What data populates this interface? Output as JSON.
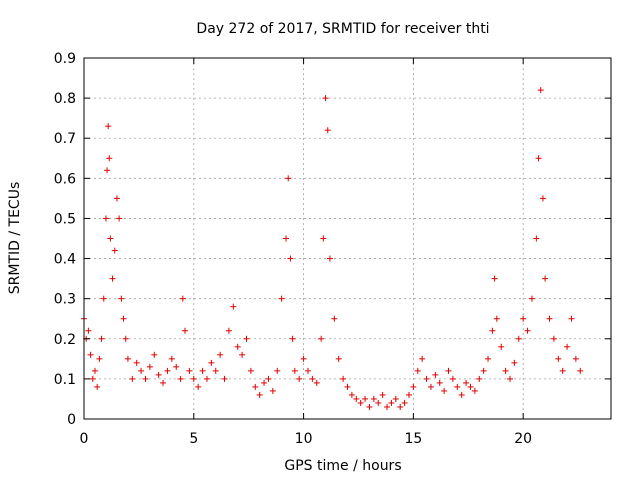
{
  "chart_data": {
    "type": "scatter",
    "title": "Day 272 of 2017, SRMTID for receiver thti",
    "xlabel": "GPS time / hours",
    "ylabel": "SRMTID / TECUs",
    "xlim": [
      0,
      24
    ],
    "ylim": [
      0,
      0.9
    ],
    "xticks": [
      0,
      5,
      10,
      15,
      20
    ],
    "xtick_labels": [
      "0",
      "5",
      "10",
      "15",
      "20"
    ],
    "yticks": [
      0,
      0.1,
      0.2,
      0.3,
      0.4,
      0.5,
      0.6,
      0.7,
      0.8,
      0.9
    ],
    "ytick_labels": [
      "0",
      "0.1",
      "0.2",
      "0.3",
      "0.4",
      "0.5",
      "0.6",
      "0.7",
      "0.8",
      "0.9"
    ],
    "grid": true,
    "marker": "+",
    "color": "#e00000",
    "series": [
      {
        "name": "SRMTID",
        "x": [
          0.0,
          0.1,
          0.2,
          0.3,
          0.4,
          0.5,
          0.6,
          0.7,
          0.8,
          0.9,
          1.0,
          1.05,
          1.1,
          1.15,
          1.2,
          1.3,
          1.4,
          1.5,
          1.6,
          1.7,
          1.8,
          1.9,
          2.0,
          2.2,
          2.4,
          2.6,
          2.8,
          3.0,
          3.2,
          3.4,
          3.6,
          3.8,
          4.0,
          4.2,
          4.4,
          4.5,
          4.6,
          4.8,
          5.0,
          5.2,
          5.4,
          5.6,
          5.8,
          6.0,
          6.2,
          6.4,
          6.6,
          6.8,
          7.0,
          7.2,
          7.4,
          7.6,
          7.8,
          8.0,
          8.2,
          8.4,
          8.6,
          8.8,
          9.0,
          9.2,
          9.3,
          9.4,
          9.5,
          9.6,
          9.8,
          10.0,
          10.2,
          10.4,
          10.6,
          10.8,
          10.9,
          11.0,
          11.1,
          11.2,
          11.4,
          11.6,
          11.8,
          12.0,
          12.2,
          12.4,
          12.6,
          12.8,
          13.0,
          13.2,
          13.4,
          13.6,
          13.8,
          14.0,
          14.2,
          14.4,
          14.6,
          14.8,
          15.0,
          15.2,
          15.4,
          15.6,
          15.8,
          16.0,
          16.2,
          16.4,
          16.6,
          16.8,
          17.0,
          17.2,
          17.4,
          17.6,
          17.8,
          18.0,
          18.2,
          18.4,
          18.6,
          18.7,
          18.8,
          19.0,
          19.2,
          19.4,
          19.6,
          19.8,
          20.0,
          20.2,
          20.4,
          20.6,
          20.7,
          20.8,
          20.9,
          21.0,
          21.2,
          21.4,
          21.6,
          21.8,
          22.0,
          22.2,
          22.4,
          22.6
        ],
        "y": [
          0.25,
          0.2,
          0.22,
          0.16,
          0.1,
          0.12,
          0.08,
          0.15,
          0.2,
          0.3,
          0.5,
          0.62,
          0.73,
          0.65,
          0.45,
          0.35,
          0.42,
          0.55,
          0.5,
          0.3,
          0.25,
          0.2,
          0.15,
          0.1,
          0.14,
          0.12,
          0.1,
          0.13,
          0.16,
          0.11,
          0.09,
          0.12,
          0.15,
          0.13,
          0.1,
          0.3,
          0.22,
          0.12,
          0.1,
          0.08,
          0.12,
          0.1,
          0.14,
          0.12,
          0.16,
          0.1,
          0.22,
          0.28,
          0.18,
          0.16,
          0.2,
          0.12,
          0.08,
          0.06,
          0.09,
          0.1,
          0.07,
          0.12,
          0.3,
          0.45,
          0.6,
          0.4,
          0.2,
          0.12,
          0.1,
          0.15,
          0.12,
          0.1,
          0.09,
          0.2,
          0.45,
          0.8,
          0.72,
          0.4,
          0.25,
          0.15,
          0.1,
          0.08,
          0.06,
          0.05,
          0.04,
          0.05,
          0.03,
          0.05,
          0.04,
          0.06,
          0.03,
          0.04,
          0.05,
          0.03,
          0.04,
          0.06,
          0.08,
          0.12,
          0.15,
          0.1,
          0.08,
          0.11,
          0.09,
          0.07,
          0.12,
          0.1,
          0.08,
          0.06,
          0.09,
          0.08,
          0.07,
          0.1,
          0.12,
          0.15,
          0.22,
          0.35,
          0.25,
          0.18,
          0.12,
          0.1,
          0.14,
          0.2,
          0.25,
          0.22,
          0.3,
          0.45,
          0.65,
          0.82,
          0.55,
          0.35,
          0.25,
          0.2,
          0.15,
          0.12,
          0.18,
          0.25,
          0.15,
          0.12
        ]
      }
    ]
  }
}
